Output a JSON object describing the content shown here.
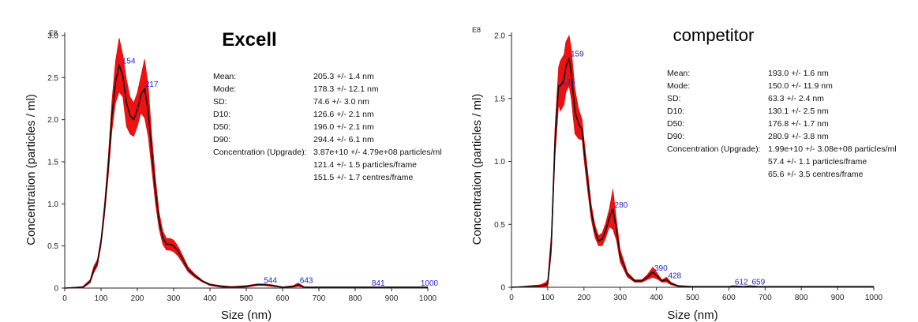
{
  "chart_data": [
    {
      "type": "line",
      "title": "Excell",
      "exponent_label": "E8",
      "xlabel": "Size (nm)",
      "ylabel": "Concentration (particles / ml)",
      "xlim": [
        0,
        1000
      ],
      "ylim": [
        0,
        3.0
      ],
      "xticks": [
        0,
        100,
        200,
        300,
        400,
        500,
        600,
        700,
        800,
        900,
        1000
      ],
      "yticks": [
        0,
        0.5,
        1.0,
        1.5,
        2.0,
        2.5,
        3.0
      ],
      "ytick_labels": [
        "0",
        "0.5",
        "1.0",
        "1.5",
        "2.0",
        "2.5",
        "3.0"
      ],
      "series": [
        {
          "name": "mean",
          "x": [
            0,
            50,
            70,
            80,
            90,
            100,
            110,
            120,
            130,
            140,
            150,
            160,
            170,
            180,
            190,
            200,
            210,
            220,
            230,
            240,
            250,
            260,
            270,
            280,
            290,
            300,
            310,
            320,
            330,
            340,
            360,
            380,
            400,
            430,
            460,
            500,
            530,
            550,
            570,
            600,
            630,
            643,
            660,
            700,
            800,
            900,
            1000
          ],
          "y": [
            0,
            0.01,
            0.08,
            0.22,
            0.3,
            0.55,
            0.95,
            1.45,
            2.05,
            2.45,
            2.65,
            2.52,
            2.2,
            2.05,
            2.0,
            2.12,
            2.3,
            2.37,
            2.1,
            1.6,
            1.15,
            0.8,
            0.6,
            0.52,
            0.52,
            0.5,
            0.45,
            0.38,
            0.3,
            0.22,
            0.14,
            0.08,
            0.04,
            0.02,
            0.01,
            0.02,
            0.04,
            0.04,
            0.03,
            0.01,
            0.02,
            0.04,
            0.01,
            0.01,
            0.01,
            0.01,
            0.01
          ],
          "err": [
            0,
            0.01,
            0.02,
            0.04,
            0.04,
            0.05,
            0.08,
            0.12,
            0.18,
            0.25,
            0.32,
            0.25,
            0.28,
            0.22,
            0.2,
            0.2,
            0.22,
            0.35,
            0.3,
            0.2,
            0.15,
            0.1,
            0.08,
            0.07,
            0.07,
            0.07,
            0.06,
            0.05,
            0.04,
            0.03,
            0.02,
            0.01,
            0.01,
            0.01,
            0.01,
            0.01,
            0.01,
            0.01,
            0.01,
            0.005,
            0.01,
            0.02,
            0.005,
            0.005,
            0.005,
            0.005,
            0.005
          ]
        }
      ],
      "peak_labels": [
        {
          "x": 154,
          "y": 2.65,
          "text": "154"
        },
        {
          "x": 217,
          "y": 2.37,
          "text": "217"
        },
        {
          "x": 544,
          "y": 0.04,
          "text": "544"
        },
        {
          "x": 643,
          "y": 0.04,
          "text": "643"
        },
        {
          "x": 841,
          "y": 0.01,
          "text": "841"
        },
        {
          "x": 1000,
          "y": 0.01,
          "text": "1000"
        }
      ],
      "stats": [
        {
          "label": "Mean:",
          "value": "205.3 +/- 1.4 nm"
        },
        {
          "label": "Mode:",
          "value": "178.3 +/- 12.1 nm"
        },
        {
          "label": "SD:",
          "value": "74.6 +/- 3.0 nm"
        },
        {
          "label": "D10:",
          "value": "126.6 +/- 2.1 nm"
        },
        {
          "label": "D50:",
          "value": "196.0 +/- 2.1 nm"
        },
        {
          "label": "D90:",
          "value": "294.4 +/- 6.1 nm"
        },
        {
          "label": "Concentration (Upgrade):",
          "value": "3.87e+10 +/- 4.79e+08 particles/ml"
        },
        {
          "label": "",
          "value": "121.4 +/- 1.5 particles/frame"
        },
        {
          "label": "",
          "value": "151.5 +/- 1.7 centres/frame"
        }
      ]
    },
    {
      "type": "line",
      "title": "competitor",
      "exponent_label": "E8",
      "xlabel": "Size (nm)",
      "ylabel": "Concentration (particles / ml)",
      "xlim": [
        0,
        1000
      ],
      "ylim": [
        0,
        2.0
      ],
      "xticks": [
        0,
        100,
        200,
        300,
        400,
        500,
        600,
        700,
        800,
        900,
        1000
      ],
      "yticks": [
        0,
        0.5,
        1.0,
        1.5,
        2.0
      ],
      "ytick_labels": [
        "0",
        "0.5",
        "1.0",
        "1.5",
        "2.0"
      ],
      "series": [
        {
          "name": "mean",
          "x": [
            0,
            80,
            95,
            100,
            110,
            120,
            130,
            135,
            145,
            150,
            159,
            165,
            175,
            185,
            195,
            200,
            210,
            220,
            230,
            240,
            250,
            260,
            270,
            280,
            290,
            300,
            320,
            340,
            360,
            375,
            390,
            405,
            415,
            428,
            440,
            460,
            500,
            600,
            612,
            640,
            659,
            680,
            700,
            800,
            900,
            1000
          ],
          "y": [
            0,
            0.01,
            0.02,
            0.03,
            0.35,
            1.15,
            1.6,
            1.6,
            1.65,
            1.75,
            1.82,
            1.7,
            1.4,
            1.3,
            1.25,
            1.1,
            0.85,
            0.6,
            0.45,
            0.37,
            0.38,
            0.45,
            0.55,
            0.62,
            0.45,
            0.25,
            0.1,
            0.05,
            0.05,
            0.08,
            0.12,
            0.08,
            0.05,
            0.06,
            0.03,
            0.01,
            0.005,
            0.005,
            0.01,
            0.005,
            0.01,
            0.005,
            0.005,
            0.005,
            0.005,
            0.005
          ],
          "err": [
            0,
            0.01,
            0.02,
            0.03,
            0.08,
            0.12,
            0.15,
            0.2,
            0.2,
            0.2,
            0.22,
            0.2,
            0.18,
            0.12,
            0.08,
            0.08,
            0.08,
            0.06,
            0.05,
            0.04,
            0.05,
            0.06,
            0.07,
            0.16,
            0.08,
            0.05,
            0.02,
            0.01,
            0.01,
            0.02,
            0.04,
            0.02,
            0.01,
            0.02,
            0.01,
            0.005,
            0.002,
            0.002,
            0.002,
            0.002,
            0.002,
            0.002,
            0.002,
            0.002,
            0.002,
            0.002
          ]
        }
      ],
      "peak_labels": [
        {
          "x": 135,
          "y": 1.6,
          "text": "135"
        },
        {
          "x": 159,
          "y": 1.82,
          "text": "159"
        },
        {
          "x": 280,
          "y": 0.62,
          "text": "280"
        },
        {
          "x": 390,
          "y": 0.12,
          "text": "390"
        },
        {
          "x": 428,
          "y": 0.06,
          "text": "428"
        },
        {
          "x": 612,
          "y": 0.01,
          "text": "612"
        },
        {
          "x": 659,
          "y": 0.01,
          "text": "659"
        }
      ],
      "stats": [
        {
          "label": "Mean:",
          "value": "193.0 +/- 1.6 nm"
        },
        {
          "label": "Mode:",
          "value": "150.0 +/- 11.9 nm"
        },
        {
          "label": "SD:",
          "value": "63.3 +/- 2.4 nm"
        },
        {
          "label": "D10:",
          "value": "130.1 +/- 2.5 nm"
        },
        {
          "label": "D50:",
          "value": "176.8 +/- 1.7 nm"
        },
        {
          "label": "D90:",
          "value": "280.9 +/- 3.8 nm"
        },
        {
          "label": "Concentration (Upgrade):",
          "value": "1.99e+10 +/- 3.08e+08 particles/ml"
        },
        {
          "label": "",
          "value": "57.4 +/- 1.1 particles/frame"
        },
        {
          "label": "",
          "value": "65.6 +/- 3.5 centres/frame"
        }
      ]
    }
  ]
}
